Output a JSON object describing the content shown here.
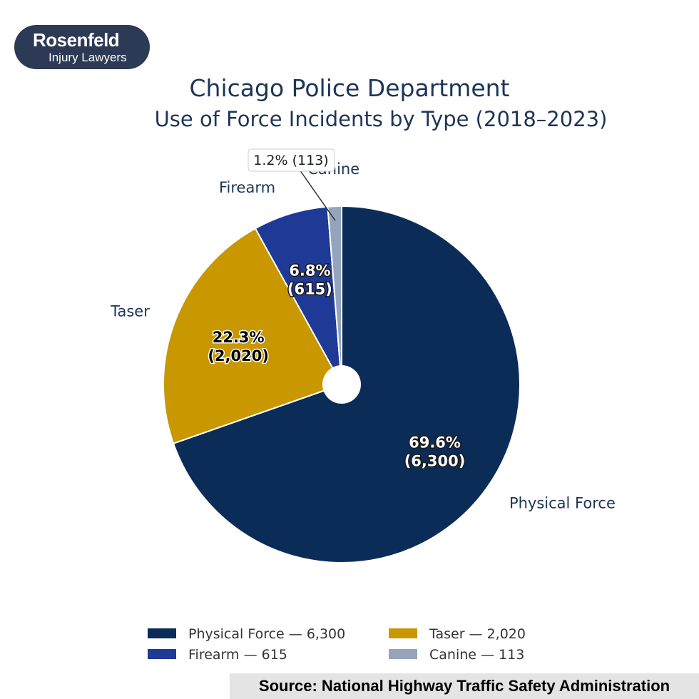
{
  "logo": {
    "line1": "Rosenfeld",
    "line2": "Injury Lawyers"
  },
  "footer": {
    "source": "Source: National Highway Traffic Safety Administration"
  },
  "chart_data": {
    "type": "pie",
    "title": "Chicago Police Department",
    "subtitle": "Use of Force Incidents by Type (2018–2023)",
    "slices": [
      {
        "name": "Physical Force",
        "value": 6300,
        "pct_label": "69.6%",
        "count_label": "(6,300)",
        "legend": "Physical Force — 6,300",
        "color": "#0b2c57"
      },
      {
        "name": "Taser",
        "value": 2020,
        "pct_label": "22.3%",
        "count_label": "(2,020)",
        "legend": "Taser — 2,020",
        "color": "#c99700"
      },
      {
        "name": "Firearm",
        "value": 615,
        "pct_label": "6.8%",
        "count_label": "(615)",
        "legend": "Firearm — 615",
        "color": "#1f3996"
      },
      {
        "name": "Canine",
        "value": 113,
        "pct_label": "1.2%",
        "count_label": "(113)",
        "legend": "Canine — 113",
        "color": "#95a3bb",
        "callout": "1.2% (113)"
      }
    ],
    "legend_position": "bottom",
    "start": "top",
    "direction": "clockwise",
    "center_hole": true
  }
}
